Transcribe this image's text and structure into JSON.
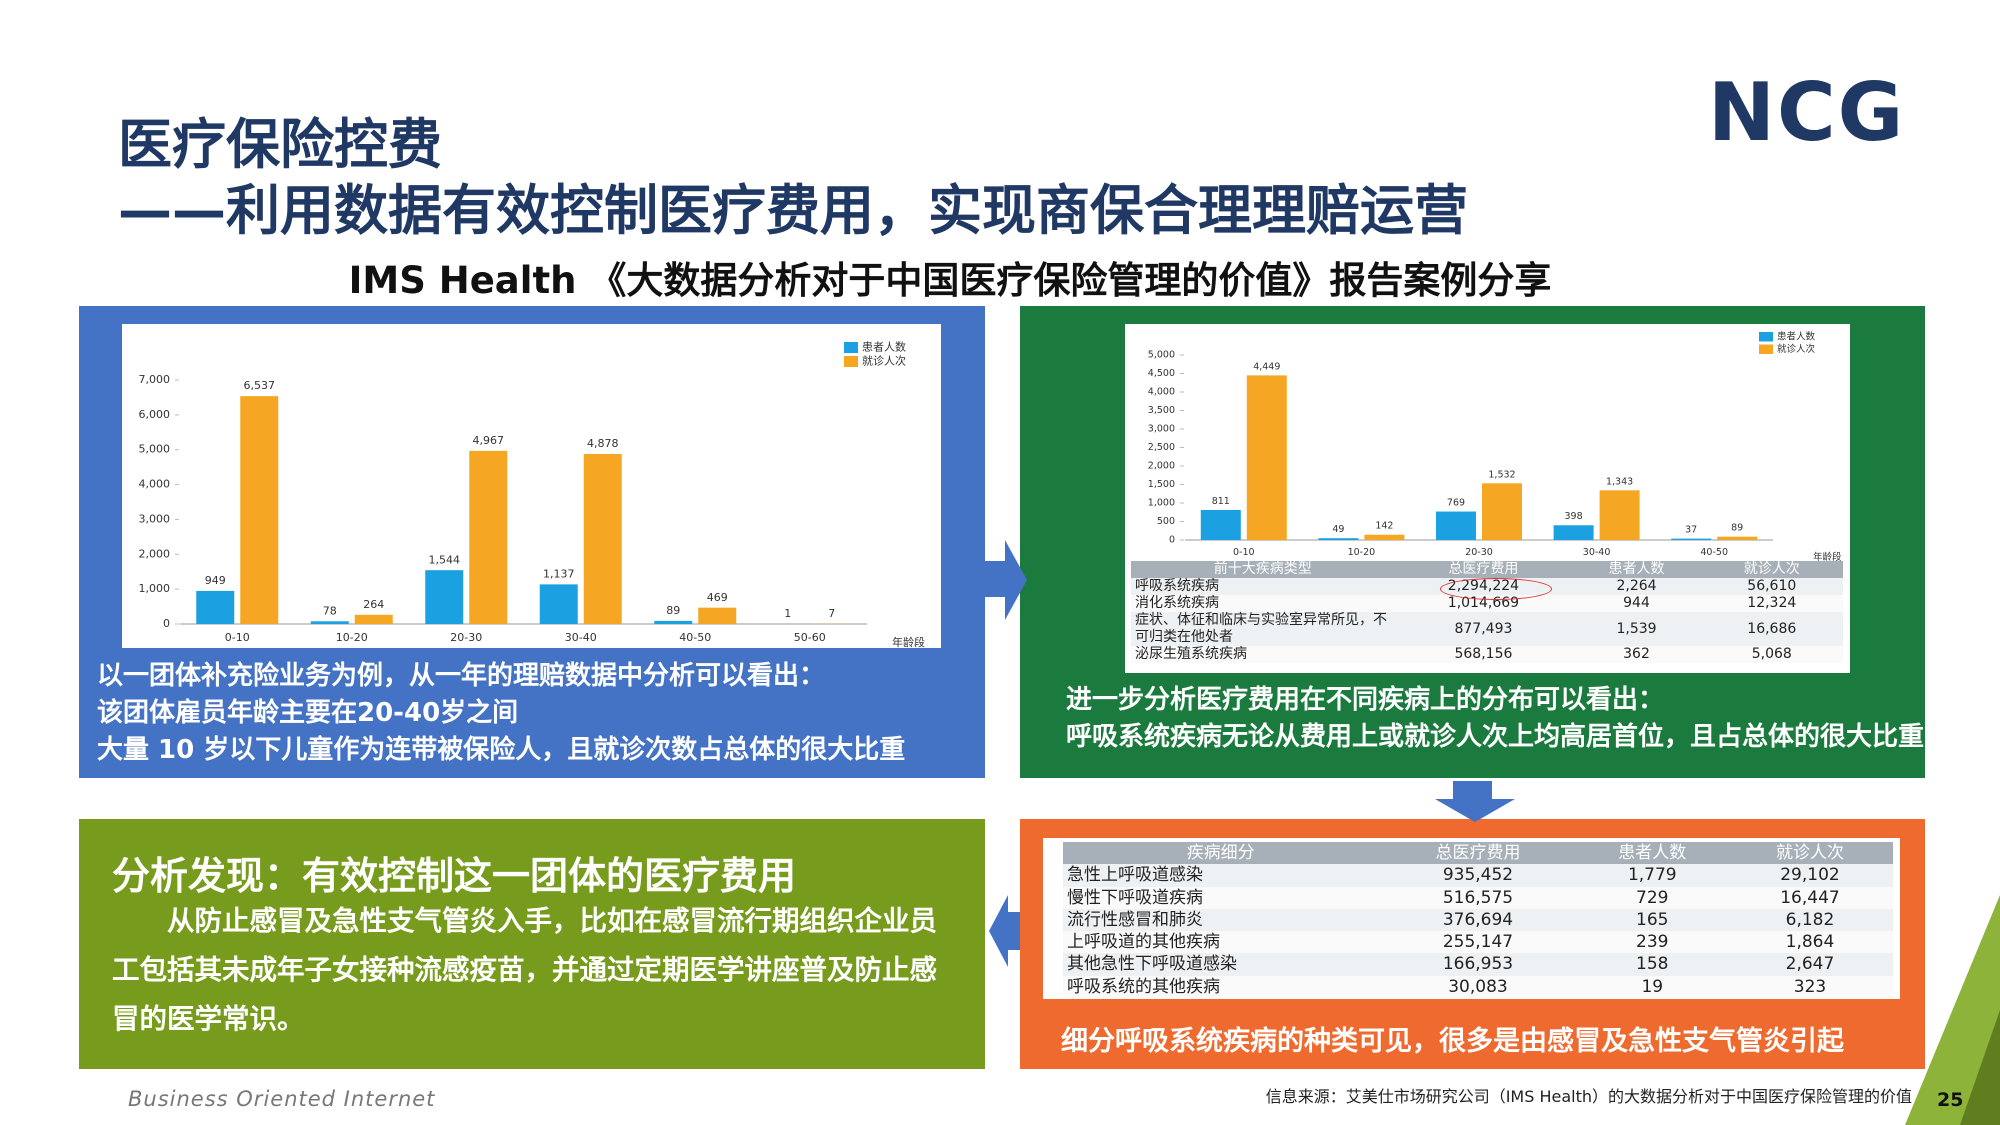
{
  "header": {
    "title": "医疗保险控费",
    "subtitle": "——利用数据有效控制医疗费用，实现商保合理理赔运营",
    "logo": "NCG",
    "report_title": "IMS Health 《大数据分析对于中国医疗保险管理的价值》报告案例分享"
  },
  "chart_data": [
    {
      "type": "bar",
      "categories": [
        "0-10",
        "10-20",
        "20-30",
        "30-40",
        "40-50",
        "50-60"
      ],
      "series": [
        {
          "name": "患者人数",
          "color": "#1ba1e2",
          "values": [
            949,
            78,
            1544,
            1137,
            89,
            1
          ],
          "value_labels": [
            "949",
            "78",
            "1,544",
            "1,137",
            "89",
            "1"
          ]
        },
        {
          "name": "就诊人次",
          "color": "#f5a623",
          "values": [
            6537,
            264,
            4967,
            4878,
            469,
            7
          ],
          "value_labels": [
            "6,537",
            "264",
            "4,967",
            "4,878",
            "469",
            "7"
          ]
        }
      ],
      "ylim": [
        0,
        7000
      ],
      "yticks": [
        0,
        {
          "value": 1000,
          "label": "1,000"
        },
        {
          "value": 2000,
          "label": "2,000"
        },
        {
          "value": 3000,
          "label": "3,000"
        },
        {
          "value": 4000,
          "label": "4,000"
        },
        {
          "value": 5000,
          "label": "5,000"
        },
        {
          "value": 6000,
          "label": "6,000"
        },
        {
          "value": 7000,
          "label": "7,000"
        }
      ],
      "x_label": "年龄段",
      "legend": "top-right"
    },
    {
      "type": "bar",
      "categories": [
        "0-10",
        "10-20",
        "20-30",
        "30-40",
        "40-50"
      ],
      "series": [
        {
          "name": "患者人数",
          "color": "#1ba1e2",
          "values": [
            811,
            49,
            769,
            398,
            37
          ],
          "value_labels": [
            "811",
            "49",
            "769",
            "398",
            "37"
          ]
        },
        {
          "name": "就诊人次",
          "color": "#f5a623",
          "values": [
            4449,
            142,
            1532,
            1343,
            89
          ],
          "value_labels": [
            "4,449",
            "142",
            "1,532",
            "1,343",
            "89"
          ]
        }
      ],
      "ylim": [
        0,
        5000
      ],
      "yticks": [
        0,
        500,
        {
          "value": 1000,
          "label": "1,000"
        },
        {
          "value": 1500,
          "label": "1,500"
        },
        {
          "value": 2000,
          "label": "2,000"
        },
        {
          "value": 2500,
          "label": "2,500"
        },
        {
          "value": 3000,
          "label": "3,000"
        },
        {
          "value": 3500,
          "label": "3,500"
        },
        {
          "value": 4000,
          "label": "4,000"
        },
        {
          "value": 4500,
          "label": "4,500"
        },
        {
          "value": 5000,
          "label": "5,000"
        }
      ],
      "x_label": "年龄段",
      "legend": "top-right"
    }
  ],
  "panels": {
    "blue": {
      "lines": [
        "以一团体补充险业务为例，从一年的理赔数据中分析可以看出：",
        "该团体雇员年龄主要在20-40岁之间",
        "大量 10 岁以下儿童作为连带被保险人，且就诊次数占总体的很大比重"
      ]
    },
    "green": {
      "table": {
        "headers": [
          "前十大疾病类型",
          "总医疗费用",
          "患者人数",
          "就诊人次"
        ],
        "rows": [
          [
            "呼吸系统疾病",
            "2,294,224",
            "2,264",
            "56,610"
          ],
          [
            "消化系统疾病",
            "1,014,669",
            "944",
            "12,324"
          ],
          [
            "症状、体征和临床与实验室异常所见，不可归类在他处者",
            "877,493",
            "1,539",
            "16,686"
          ],
          [
            "泌尿生殖系统疾病",
            "568,156",
            "362",
            "5,068"
          ]
        ]
      },
      "lines": [
        "进一步分析医疗费用在不同疾病上的分布可以看出：",
        "呼吸系统疾病无论从费用上或就诊人次上均高居首位，且占总体的很大比重"
      ]
    },
    "olive": {
      "title": "分析发现：有效控制这一团体的医疗费用",
      "body": "从防止感冒及急性支气管炎入手，比如在感冒流行期组织企业员工包括其未成年子女接种流感疫苗，并通过定期医学讲座普及防止感冒的医学常识。"
    },
    "orange": {
      "table": {
        "headers": [
          "疾病细分",
          "总医疗费用",
          "患者人数",
          "就诊人次"
        ],
        "rows": [
          [
            "急性上呼吸道感染",
            "935,452",
            "1,779",
            "29,102"
          ],
          [
            "慢性下呼吸道疾病",
            "516,575",
            "729",
            "16,447"
          ],
          [
            "流行性感冒和肺炎",
            "376,694",
            "165",
            "6,182"
          ],
          [
            "上呼吸道的其他疾病",
            "255,147",
            "239",
            "1,864"
          ],
          [
            "其他急性下呼吸道感染",
            "166,953",
            "158",
            "2,647"
          ],
          [
            "呼吸系统的其他疾病",
            "30,083",
            "19",
            "323"
          ]
        ]
      },
      "caption": "细分呼吸系统疾病的种类可见，很多是由感冒及急性支气管炎引起"
    }
  },
  "footer": {
    "tagline": "Business Oriented Internet",
    "source": "信息来源：艾美仕市场研究公司（IMS Health）的大数据分析对于中国医疗保险管理的价值",
    "page": "25"
  }
}
